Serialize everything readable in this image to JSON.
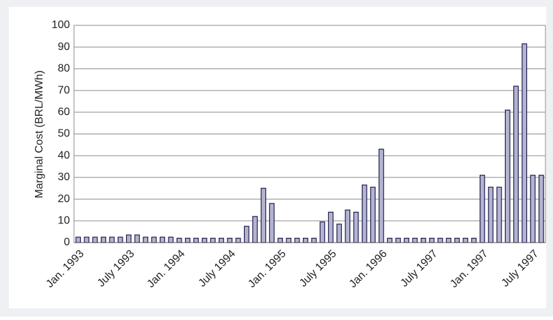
{
  "chart_data": {
    "type": "bar",
    "y_label": "Marginal Cost (BRL/MWh)",
    "categories": [
      "Jan. 1993",
      null,
      null,
      null,
      null,
      null,
      "July 1993",
      null,
      null,
      null,
      null,
      null,
      "Jan. 1994",
      null,
      null,
      null,
      null,
      null,
      "July 1994",
      null,
      null,
      null,
      null,
      null,
      "Jan. 1995",
      null,
      null,
      null,
      null,
      null,
      "July 1995",
      null,
      null,
      null,
      null,
      null,
      "Jan. 1996",
      null,
      null,
      null,
      null,
      null,
      "July 1997",
      null,
      null,
      null,
      null,
      null,
      "Jan. 1997",
      null,
      null,
      null,
      null,
      null,
      "July 1997",
      null
    ],
    "values": [
      2.5,
      2.5,
      2.5,
      2.5,
      2.5,
      2.5,
      3.5,
      3.5,
      2.5,
      2.5,
      2.5,
      2.5,
      2,
      2,
      2,
      2,
      2,
      2,
      2,
      2,
      7.5,
      12,
      25,
      18,
      2,
      2,
      2,
      2,
      2,
      9.5,
      14,
      8.5,
      15,
      14,
      26.5,
      25.5,
      43,
      2,
      2,
      2,
      2,
      2,
      2,
      2,
      2,
      2,
      2,
      2,
      31,
      25.5,
      25.5,
      61,
      72,
      91.5,
      31,
      31
    ],
    "color": "#b4b4d2",
    "edge_color": "#1c1c4a",
    "ylim": [
      0,
      100
    ],
    "yticks": [
      0,
      10,
      20,
      30,
      40,
      50,
      60,
      70,
      80,
      90,
      100
    ],
    "grid": true
  }
}
